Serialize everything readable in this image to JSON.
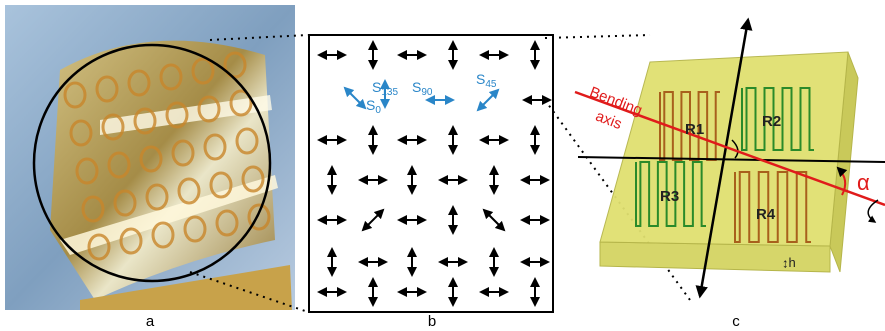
{
  "panels": {
    "a": {
      "label": "a"
    },
    "b": {
      "label": "b",
      "s135": {
        "base": "S",
        "sub": "135"
      },
      "s0": {
        "base": "S",
        "sub": "0"
      },
      "s90": {
        "base": "S",
        "sub": "90"
      },
      "s45": {
        "base": "S",
        "sub": "45"
      }
    },
    "c": {
      "label": "c",
      "axis_label": "Bending",
      "axis_label2": "axis",
      "r1": "R1",
      "r2": "R2",
      "r3": "R3",
      "r4": "R4",
      "alpha": "α",
      "h": "h"
    }
  }
}
